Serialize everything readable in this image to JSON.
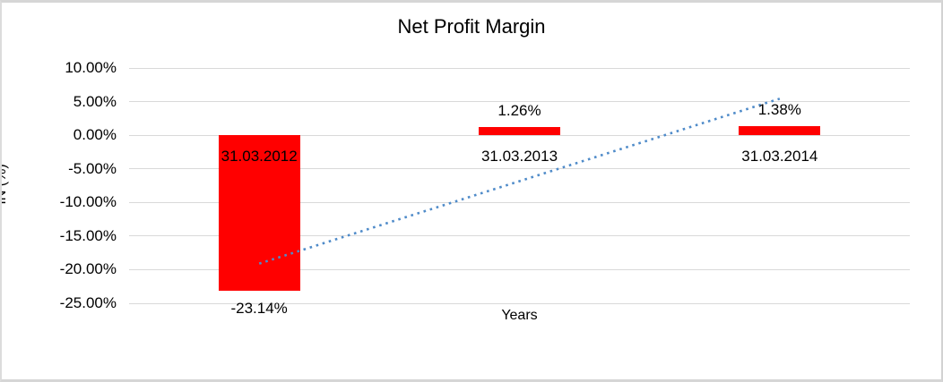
{
  "chart_data": {
    "type": "bar",
    "title": "Net Profit Margin",
    "xlabel": "Years",
    "ylabel": "IN (%)",
    "categories": [
      "31.03.2012",
      "31.03.2013",
      "31.03.2014"
    ],
    "values": [
      -23.14,
      1.26,
      1.38
    ],
    "data_labels": [
      "-23.14%",
      "1.26%",
      "1.38%"
    ],
    "ylim": [
      -25,
      10
    ],
    "ytick_step": 5,
    "ytick_labels": [
      "10.00%",
      "5.00%",
      "0.00%",
      "-5.00%",
      "-10.00%",
      "-15.00%",
      "-20.00%",
      "-25.00%"
    ],
    "grid": true,
    "legend": "none",
    "bar_color": "#ff0000",
    "gridline_color": "#d9d9d9",
    "text_color": "#000000",
    "trendline": {
      "type": "linear",
      "style": "dotted",
      "color": "#4f8bc9",
      "start_value": -19.1,
      "end_value": 5.43
    }
  }
}
